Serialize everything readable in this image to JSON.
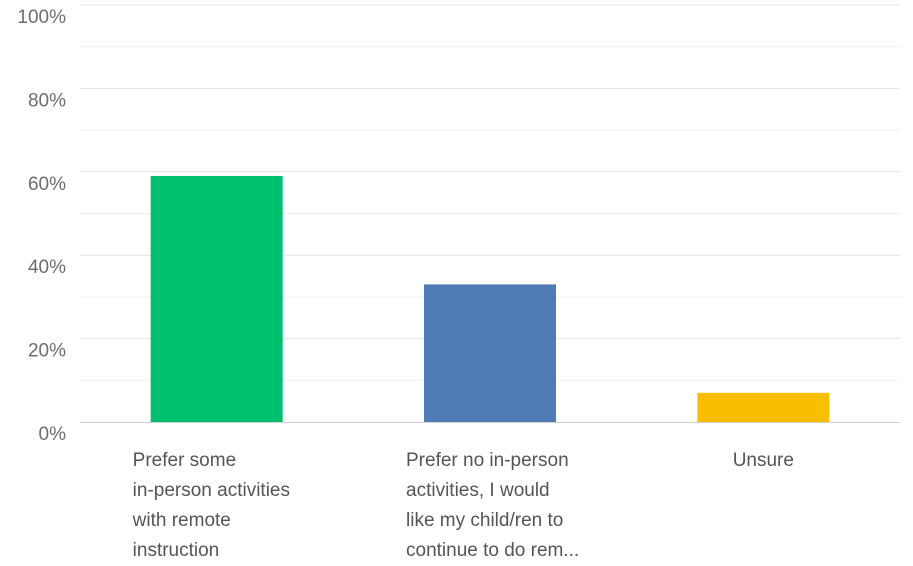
{
  "chart_data": {
    "type": "bar",
    "categories": [
      [
        "Prefer some",
        "in-person activities",
        "with remote",
        "instruction"
      ],
      [
        "Prefer no in-person",
        "activities, I would",
        "like my child/ren to",
        "continue to do rem..."
      ],
      [
        "Unsure"
      ]
    ],
    "values": [
      59,
      33,
      7
    ],
    "colors": [
      "#00bf6f",
      "#507cb6",
      "#f9be00"
    ],
    "ylim": [
      0,
      100
    ],
    "yticks": [
      {
        "value": 0,
        "label": "0%"
      },
      {
        "value": 20,
        "label": "20%"
      },
      {
        "value": 40,
        "label": "40%"
      },
      {
        "value": 60,
        "label": "60%"
      },
      {
        "value": 80,
        "label": "80%"
      },
      {
        "value": 100,
        "label": "100%"
      }
    ],
    "minor_gridlines": [
      10,
      30,
      50,
      70,
      90
    ],
    "grid": true,
    "title": "",
    "xlabel": "",
    "ylabel": ""
  }
}
